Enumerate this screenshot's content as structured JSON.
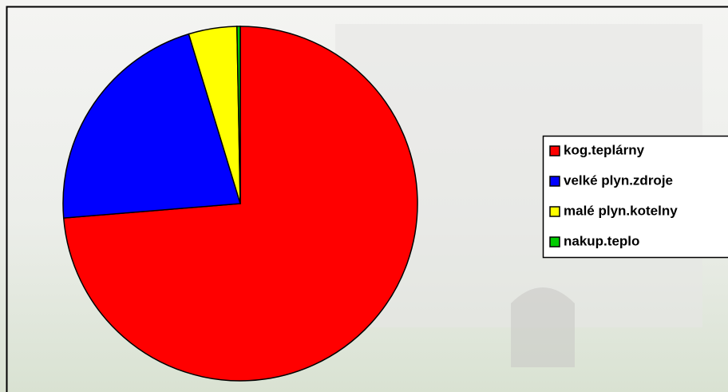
{
  "chart_data": {
    "type": "pie",
    "categories": [
      "kog.teplárny",
      "velké plyn.zdroje",
      "malé plyn.kotelny",
      "nakup.teplo"
    ],
    "values": [
      73.7,
      21.6,
      4.4,
      0.3
    ],
    "colors": [
      "#ff0000",
      "#0000ff",
      "#ffff00",
      "#00cc00"
    ]
  }
}
